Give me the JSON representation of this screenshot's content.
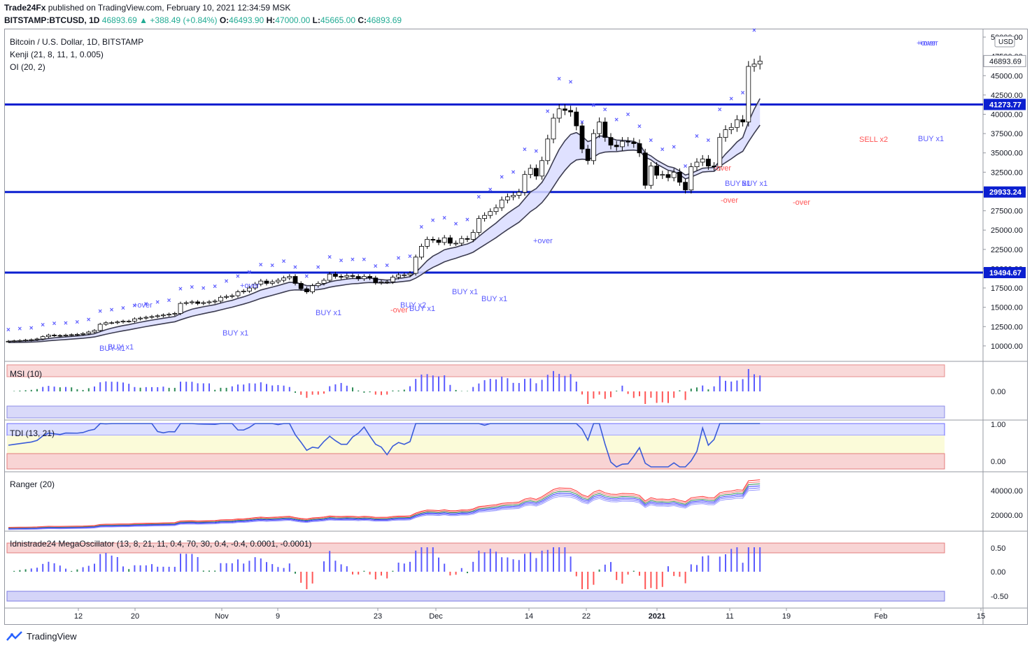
{
  "header": {
    "publisher": "Trade24Fx",
    "published_text": "published on TradingView.com, February 10, 2021 12:34:59 MSK",
    "symbol": "BITSTAMP:BTCUSD, 1D",
    "change": "46893.69 ▲ +388.49 (+0.84%)",
    "o_label": "O:",
    "o": "46493.90",
    "h_label": "H:",
    "h": "47000.00",
    "l_label": "L:",
    "l": "45665.00",
    "c_label": "C:",
    "c": "46893.69"
  },
  "legend": {
    "title": "Bitcoin / U.S. Dollar, 1D, BITSTAMP",
    "kenji": "Kenji (21, 8, 11, 1, 0.005)",
    "oi": "OI (20, 2)",
    "msi": "MSI (10)",
    "tdi": "TDI (13, 21)",
    "ranger": "Ranger (20)",
    "mega": "Idnistrade24 MegaOscillator (13, 8, 21, 11, 0.4, 70, 30, 0.4, -0.4, 0.0001, -0.0001)"
  },
  "currency": "USD",
  "price_axis": [
    "50000.00",
    "47500.00",
    "45000.00",
    "42500.00",
    "40000.00",
    "37500.00",
    "35000.00",
    "32500.00",
    "30000.00",
    "27500.00",
    "25000.00",
    "22500.00",
    "20000.00",
    "17500.00",
    "15000.00",
    "12500.00",
    "10000.00"
  ],
  "level_labels": [
    "41273.77",
    "29933.24",
    "19494.67"
  ],
  "last_price": "46893.69",
  "msi_axis": [
    "0.00"
  ],
  "tdi_axis": [
    "1.00",
    "0.00"
  ],
  "ranger_axis": [
    "40000.00",
    "20000.00"
  ],
  "mega_axis": [
    "0.50",
    "0.00",
    "-0.50"
  ],
  "x_axis": [
    "12",
    "20",
    "Nov",
    "9",
    "23",
    "Dec",
    "14",
    "22",
    "2021",
    "11",
    "19",
    "Feb",
    "15"
  ],
  "annotations": [
    "+over",
    "+over",
    "+over",
    "+over",
    "+over",
    "-over",
    "-over",
    "-over",
    "-over",
    "BUY x1",
    "BUY x1",
    "BUY x1",
    "BUY x1",
    "BUY x2",
    "BUY x1",
    "BUY x1",
    "BUY x1",
    "BUY x1",
    "BUY x1",
    "BUY x1",
    "SELL x2"
  ],
  "footer": "TradingView",
  "chart_data": {
    "type": "candlestick",
    "title": "Bitcoin / U.S. Dollar, 1D, BITSTAMP",
    "ylim": [
      8000,
      51000
    ],
    "horizontal_levels": [
      41273.77,
      29933.24,
      19494.67
    ],
    "close": [
      10600,
      10650,
      10700,
      10750,
      10800,
      10900,
      11200,
      11400,
      11350,
      11300,
      11400,
      11450,
      11500,
      11600,
      11800,
      12000,
      12800,
      13000,
      13000,
      13100,
      13200,
      13200,
      13500,
      13600,
      13700,
      13800,
      13900,
      14000,
      14100,
      14200,
      15500,
      15600,
      15700,
      15500,
      15600,
      15700,
      15800,
      16300,
      16400,
      16500,
      17000,
      17100,
      17500,
      18000,
      18400,
      18100,
      18300,
      18500,
      18800,
      19000,
      18100,
      17400,
      17000,
      17800,
      18100,
      18500,
      19300,
      19000,
      18900,
      19100,
      19000,
      18700,
      19000,
      18800,
      18200,
      18300,
      18300,
      18900,
      19200,
      19200,
      19400,
      21500,
      22900,
      23800,
      23700,
      23400,
      24000,
      23300,
      23300,
      23900,
      23800,
      24700,
      26500,
      26900,
      27400,
      27900,
      28900,
      29300,
      29500,
      29900,
      32200,
      33000,
      32000,
      34000,
      36800,
      39500,
      40700,
      40500,
      40300,
      38500,
      35500,
      34000,
      37500,
      39000,
      37000,
      36000,
      35800,
      36500,
      36400,
      36200,
      35000,
      30800,
      33300,
      32100,
      32200,
      31800,
      32500,
      31200,
      30200,
      33200,
      33800,
      34200,
      33300,
      33200,
      37000,
      38000,
      38300,
      39300,
      39000,
      46200,
      46500,
      46893.69
    ],
    "ranges": {
      "msi": [
        -1,
        1
      ],
      "tdi": [
        0,
        1
      ],
      "ranger": [
        10000,
        55000
      ],
      "mega": [
        -0.6,
        0.7
      ]
    }
  },
  "colors": {
    "level": "#0b1fd0",
    "bull": "#ffffff",
    "bear": "#000000",
    "marker": "#5b5bff",
    "buy": "#5b5bff",
    "sell": "#ff5555",
    "band_upper": "#3c3c50",
    "band_lower": "#3c3c50",
    "band_fill": "#d9dcff",
    "band_fill_green": "#d3f0d3"
  }
}
